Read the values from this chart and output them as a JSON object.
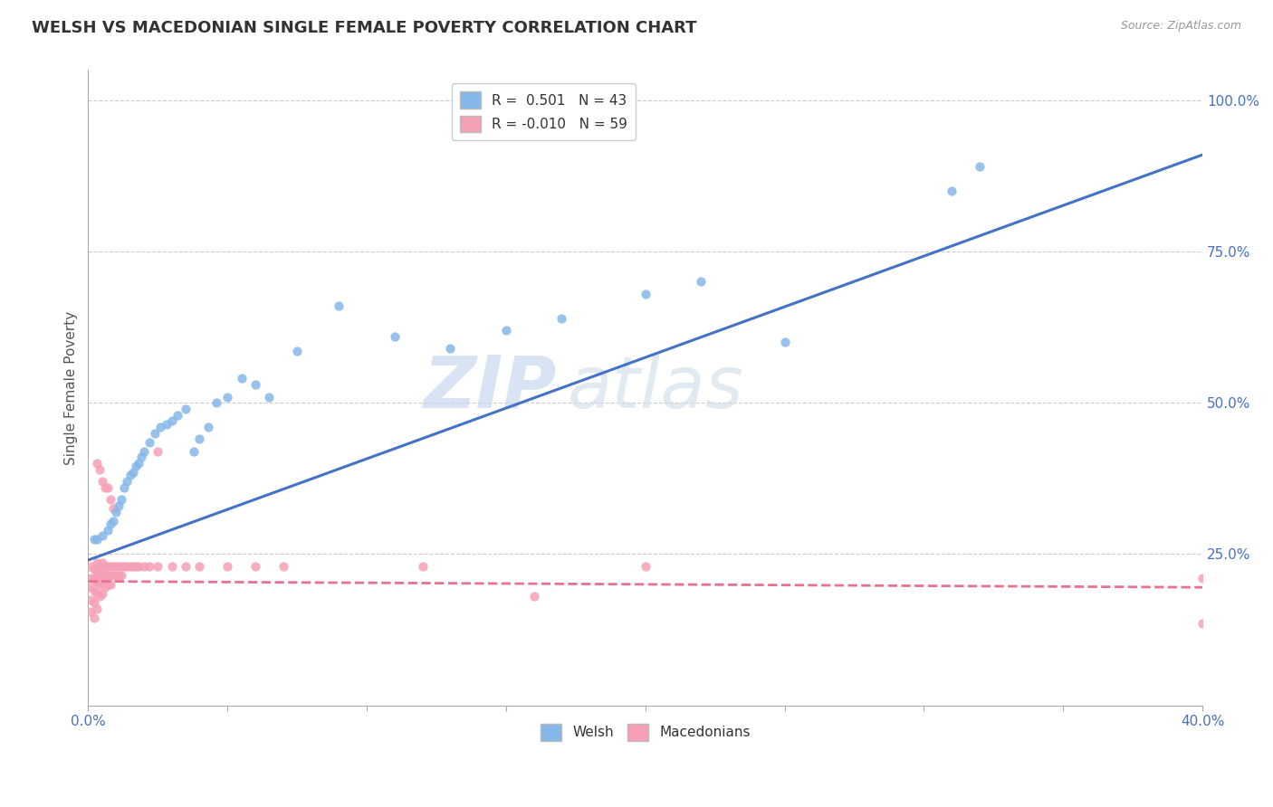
{
  "title": "WELSH VS MACEDONIAN SINGLE FEMALE POVERTY CORRELATION CHART",
  "source": "Source: ZipAtlas.com",
  "ylabel": "Single Female Poverty",
  "legend_bottom": [
    "Welsh",
    "Macedonians"
  ],
  "welsh_R": "0.501",
  "welsh_N": "43",
  "mac_R": "-0.010",
  "mac_N": "59",
  "welsh_color": "#85b8e8",
  "mac_color": "#f5a0b5",
  "welsh_line_color": "#4472c4",
  "mac_line_color": "#e87090",
  "watermark_zip": "ZIP",
  "watermark_atlas": "atlas",
  "background_color": "#ffffff",
  "welsh_scatter_x": [
    0.002,
    0.003,
    0.005,
    0.007,
    0.008,
    0.009,
    0.01,
    0.011,
    0.012,
    0.013,
    0.014,
    0.015,
    0.016,
    0.017,
    0.018,
    0.019,
    0.02,
    0.022,
    0.024,
    0.026,
    0.028,
    0.03,
    0.032,
    0.035,
    0.038,
    0.04,
    0.043,
    0.046,
    0.05,
    0.055,
    0.06,
    0.065,
    0.075,
    0.09,
    0.11,
    0.13,
    0.15,
    0.17,
    0.2,
    0.22,
    0.25,
    0.31,
    0.32
  ],
  "welsh_scatter_y": [
    0.275,
    0.275,
    0.28,
    0.29,
    0.3,
    0.305,
    0.32,
    0.33,
    0.34,
    0.36,
    0.37,
    0.38,
    0.385,
    0.395,
    0.4,
    0.41,
    0.42,
    0.435,
    0.45,
    0.46,
    0.465,
    0.47,
    0.48,
    0.49,
    0.42,
    0.44,
    0.46,
    0.5,
    0.51,
    0.54,
    0.53,
    0.51,
    0.585,
    0.66,
    0.61,
    0.59,
    0.62,
    0.64,
    0.68,
    0.7,
    0.6,
    0.85,
    0.89
  ],
  "mac_scatter_x": [
    0.001,
    0.001,
    0.001,
    0.001,
    0.001,
    0.002,
    0.002,
    0.002,
    0.002,
    0.002,
    0.003,
    0.003,
    0.003,
    0.003,
    0.003,
    0.004,
    0.004,
    0.004,
    0.004,
    0.005,
    0.005,
    0.005,
    0.005,
    0.006,
    0.006,
    0.006,
    0.007,
    0.007,
    0.007,
    0.008,
    0.008,
    0.008,
    0.009,
    0.009,
    0.01,
    0.01,
    0.011,
    0.011,
    0.012,
    0.012,
    0.013,
    0.014,
    0.015,
    0.016,
    0.017,
    0.018,
    0.02,
    0.022,
    0.025,
    0.03,
    0.035,
    0.04,
    0.05,
    0.06,
    0.07,
    0.12,
    0.16,
    0.2,
    0.4
  ],
  "mac_scatter_y": [
    0.23,
    0.21,
    0.195,
    0.175,
    0.155,
    0.225,
    0.21,
    0.19,
    0.17,
    0.145,
    0.235,
    0.22,
    0.205,
    0.185,
    0.16,
    0.23,
    0.215,
    0.2,
    0.18,
    0.235,
    0.22,
    0.205,
    0.185,
    0.23,
    0.215,
    0.195,
    0.23,
    0.215,
    0.2,
    0.23,
    0.215,
    0.2,
    0.23,
    0.215,
    0.23,
    0.215,
    0.23,
    0.215,
    0.23,
    0.215,
    0.23,
    0.23,
    0.23,
    0.23,
    0.23,
    0.23,
    0.23,
    0.23,
    0.23,
    0.23,
    0.23,
    0.23,
    0.23,
    0.23,
    0.23,
    0.23,
    0.18,
    0.23,
    0.21
  ],
  "mac_outliers_x": [
    0.003,
    0.004,
    0.005,
    0.006,
    0.007,
    0.008,
    0.009,
    0.025,
    0.4
  ],
  "mac_outliers_y": [
    0.4,
    0.39,
    0.37,
    0.36,
    0.36,
    0.34,
    0.325,
    0.42,
    0.135
  ],
  "welsh_line_x0": 0.0,
  "welsh_line_y0": 0.24,
  "welsh_line_x1": 0.4,
  "welsh_line_y1": 0.91,
  "mac_line_x0": 0.0,
  "mac_line_y0": 0.205,
  "mac_line_x1": 0.4,
  "mac_line_y1": 0.195,
  "xlim": [
    0.0,
    0.4
  ],
  "ylim": [
    0.0,
    1.05
  ],
  "yticks": [
    0.25,
    0.5,
    0.75,
    1.0
  ],
  "xtick_count": 9
}
